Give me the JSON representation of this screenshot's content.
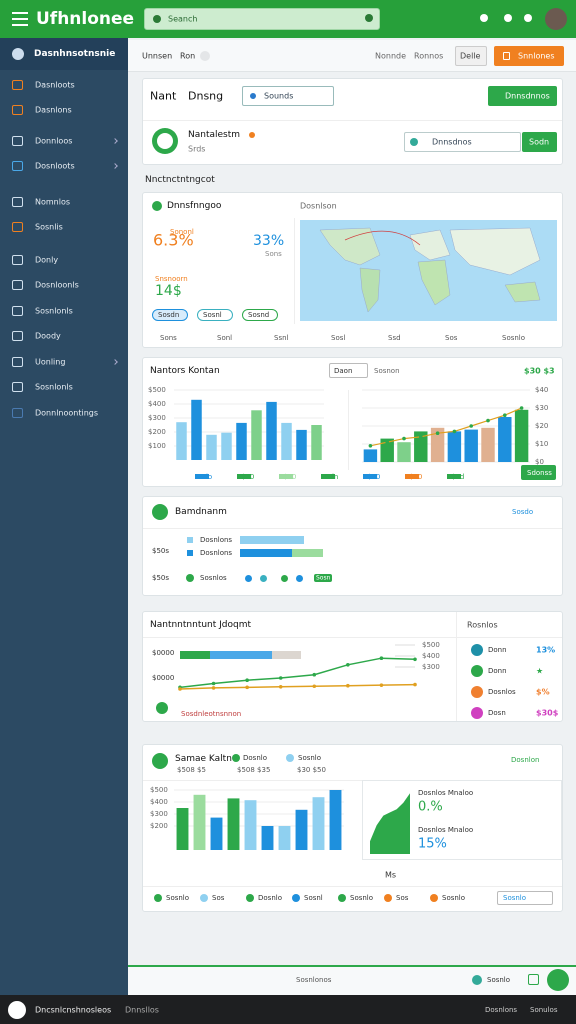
{
  "topbar": {
    "title": "Ufhnlonee",
    "search": "Seanch"
  },
  "sidebar": {
    "header": "Dasnhnsotnsnie",
    "items": [
      "Dasnloots",
      "Dasnlons",
      "Donnloos",
      "Dosnloots",
      "Nomnlos",
      "Sosnlis",
      "Donly",
      "Dosnloonls",
      "Sosnlonls",
      "Doody",
      "Uonling",
      "Sosnlonls",
      "Donnlnoontings"
    ]
  },
  "header": {
    "tabs": [
      "Unnsen",
      "Ron"
    ],
    "links": [
      "Nonnde",
      "Ronnos"
    ],
    "buttons": [
      "Delle",
      "Snnlones"
    ]
  },
  "filters": {
    "title": "Nant",
    "label": "Dnsng",
    "select": "Sounds",
    "button": "Dnnsdnnos",
    "profile_name": "Nantalestm",
    "profile_sub": "Srds",
    "select2": "Dnnsdnos",
    "button2": "Sodn"
  },
  "section_title": "Nnctnctntngcot",
  "map_card": {
    "title": "Dnnsfnngoo",
    "link": "Dosnlson",
    "stat1": {
      "value": "6.3%",
      "label": "Sononl"
    },
    "stat2": {
      "value": "33%",
      "label": "Sons"
    },
    "stat3": {
      "value": "14$",
      "label": "Snsnoorn"
    },
    "legend": [
      "Sosdn",
      "Sosnl",
      "Sosnd"
    ],
    "axis": [
      "Sons",
      "Sonl",
      "Ssnl",
      "Sosl",
      "Ssd",
      "Sos",
      "Sosnlo"
    ]
  },
  "bar_card": {
    "title": "Nantors Kontan",
    "select": "Daon",
    "link": "Sosnon",
    "badge": "$30 $3",
    "button": "Sdonss",
    "legend": [
      "Sdo",
      "$30",
      "$30",
      "Sdn",
      "$30",
      "$30",
      "$3d"
    ],
    "left_chart": {
      "ylim": [
        0,
        500
      ],
      "yticks": [
        {
          "value": 500,
          "label": "$500"
        },
        {
          "value": 400,
          "label": "$400"
        },
        {
          "value": 300,
          "label": "$300"
        },
        {
          "value": 200,
          "label": "$200"
        },
        {
          "value": 100,
          "label": "$100"
        }
      ],
      "values": [
        270,
        430,
        180,
        195,
        265,
        355,
        415,
        265,
        215,
        250
      ],
      "colors": [
        "#8fd0f0",
        "#1e90dd",
        "#8fd0f0",
        "#8fd0f0",
        "#1e90dd",
        "#7ed08a",
        "#1e90dd",
        "#8fd0f0",
        "#1e90dd",
        "#7ed08a"
      ]
    },
    "right_chart": {
      "ylim": [
        0,
        40
      ],
      "yticks": [
        {
          "value": 40,
          "label": "$40"
        },
        {
          "value": 30,
          "label": "$30"
        },
        {
          "value": 20,
          "label": "$20"
        },
        {
          "value": 10,
          "label": "$10"
        },
        {
          "value": 0,
          "label": "$0"
        }
      ],
      "values": [
        7,
        13,
        11,
        17,
        19,
        17,
        18,
        19,
        25,
        29
      ],
      "colors": [
        "#1e90dd",
        "#2da84a",
        "#7ed08a",
        "#2da84a",
        "#e0b090",
        "#1e90dd",
        "#1e90dd",
        "#e0b090",
        "#1e90dd",
        "#2da84a"
      ],
      "line": {
        "color": "#e0a020",
        "values": [
          9,
          11,
          13,
          14,
          16,
          17,
          20,
          23,
          26,
          30
        ]
      }
    }
  },
  "list_card": {
    "title": "Bamdnanm",
    "link": "Sosdo",
    "side_labels": [
      "$50s",
      "$50s"
    ],
    "rows": [
      {
        "label": "Dosnlons",
        "segments": [
          {
            "value": 64,
            "color": "#8fd0f0"
          }
        ]
      },
      {
        "label": "Dosnlons",
        "segments": [
          {
            "value": 52,
            "color": "#1e90dd"
          },
          {
            "value": 31,
            "color": "#9bdc9e"
          }
        ]
      }
    ],
    "legend": [
      "Sosnlos",
      "Sosn"
    ]
  },
  "line_card": {
    "title": "Nantnntnntunt Jdoqmt",
    "side_title": "Rosnlos",
    "left_labels": [
      "$0000",
      "$0000"
    ],
    "note": "Sosdnleotnsnnon",
    "ylim": [
      0,
      500
    ],
    "yticks": [
      {
        "value": 500,
        "label": "$500"
      },
      {
        "value": 400,
        "label": "$400"
      },
      {
        "value": 300,
        "label": "$300"
      }
    ],
    "series": [
      {
        "color": "#2da84a",
        "values": [
          115,
          150,
          180,
          200,
          230,
          320,
          380,
          370
        ]
      },
      {
        "color": "#e0a020",
        "values": [
          100,
          110,
          115,
          120,
          125,
          130,
          135,
          140
        ]
      }
    ],
    "bars": [
      {
        "value": 30,
        "color": "#2da84a"
      },
      {
        "value": 62,
        "color": "#4aa8e8"
      },
      {
        "value": 29,
        "color": "#dcd6d0"
      }
    ],
    "stats": [
      {
        "name": "Donn",
        "value": "13%",
        "color": "#1e90a8"
      },
      {
        "name": "Donn",
        "value": "★",
        "color": "#2da84a"
      },
      {
        "name": "Dosnlos",
        "value": "$%",
        "color": "#f08030"
      },
      {
        "name": "Dosn",
        "value": "$30$",
        "color": "#d040c0"
      }
    ]
  },
  "bottom_card": {
    "title": "Samae Kaltn",
    "tags": [
      "Dosnlo",
      "Sosnlo"
    ],
    "subs": [
      "$508 $5",
      "$508 $35",
      "$30 $50"
    ],
    "link": "Dosnlon",
    "tag": "Ms",
    "chart": {
      "ylim": [
        0,
        500
      ],
      "yticks": [
        {
          "value": 500,
          "label": "$500"
        },
        {
          "value": 400,
          "label": "$400"
        },
        {
          "value": 300,
          "label": "$300"
        },
        {
          "value": 200,
          "label": "$200"
        }
      ],
      "values": [
        350,
        460,
        270,
        430,
        415,
        200,
        200,
        335,
        440,
        500
      ],
      "colors": [
        "#2da84a",
        "#9bdc9e",
        "#1e90dd",
        "#2da84a",
        "#8fd0f0",
        "#1e90dd",
        "#8fd0f0",
        "#1e90dd",
        "#8fd0f0",
        "#1e90dd"
      ]
    },
    "area": {
      "color": "#2da84a",
      "ylim": [
        0,
        100
      ],
      "values": [
        20,
        45,
        60,
        65,
        70,
        80,
        95
      ]
    },
    "area_labels": [
      "Dosnlos Mnaloo",
      "0.%",
      "Dosnlos Mnaloo",
      "15%"
    ],
    "legend": [
      "Sosnlo",
      "Sos",
      "Dosnlo",
      "Sosnl",
      "Sosnlo",
      "Sos",
      "Sosnlo"
    ],
    "button": "Sosnlo"
  },
  "bottom_bar": {
    "text": "Sosnlonos",
    "right": "Sosnlo"
  },
  "footer": {
    "brand": "Dncsnlcnshnosleos",
    "sub": "Dnnsllos",
    "right": [
      "Dosnlons",
      "Sonulos"
    ]
  }
}
